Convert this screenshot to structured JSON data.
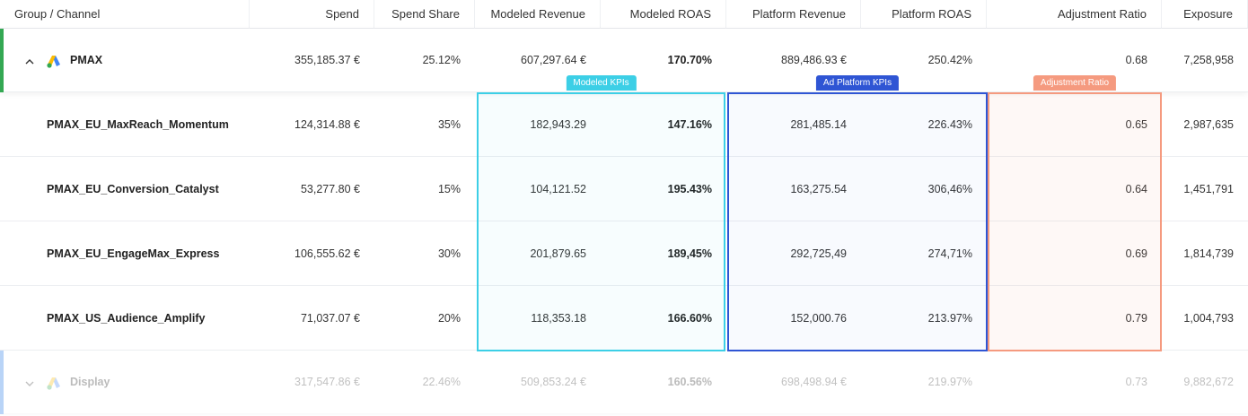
{
  "header": {
    "columns": [
      "Group / Channel",
      "Spend",
      "Spend Share",
      "Modeled Revenue",
      "Modeled ROAS",
      "Platform Revenue",
      "Platform ROAS",
      "Adjustment Ratio",
      "Exposure"
    ]
  },
  "groups": [
    {
      "name": "PMAX",
      "cells": [
        "355,185.37 €",
        "25.12%",
        "607,297.64 €",
        "170.70%",
        "889,486.93 €",
        "250.42%",
        "0.68",
        "7,258,958"
      ],
      "children": [
        {
          "name": "PMAX_EU_MaxReach_Momentum",
          "cells": [
            "124,314.88 €",
            "35%",
            "182,943.29",
            "147.16%",
            "281,485.14",
            "226.43%",
            "0.65",
            "2,987,635"
          ]
        },
        {
          "name": "PMAX_EU_Conversion_Catalyst",
          "cells": [
            "53,277.80 €",
            "15%",
            "104,121.52",
            "195.43%",
            "163,275.54",
            "306,46%",
            "0.64",
            "1,451,791"
          ]
        },
        {
          "name": "PMAX_EU_EngageMax_Express",
          "cells": [
            "106,555.62 €",
            "30%",
            "201,879.65",
            "189,45%",
            "292,725,49",
            "274,71%",
            "0.69",
            "1,814,739"
          ]
        },
        {
          "name": "PMAX_US_Audience_Amplify",
          "cells": [
            "71,037.07 €",
            "20%",
            "118,353.18",
            "166.60%",
            "152,000.76",
            "213.97%",
            "0.79",
            "1,004,793"
          ]
        }
      ]
    },
    {
      "name": "Display",
      "cells": [
        "317,547.86 €",
        "22.46%",
        "509,853.24 €",
        "160.56%",
        "698,498.94 €",
        "219.97%",
        "0.73",
        "9,882,672"
      ],
      "children": []
    }
  ],
  "highlights": [
    {
      "label": "Modeled KPIs"
    },
    {
      "label": "Ad Platform KPIs"
    },
    {
      "label": "Adjustment Ratio"
    }
  ]
}
